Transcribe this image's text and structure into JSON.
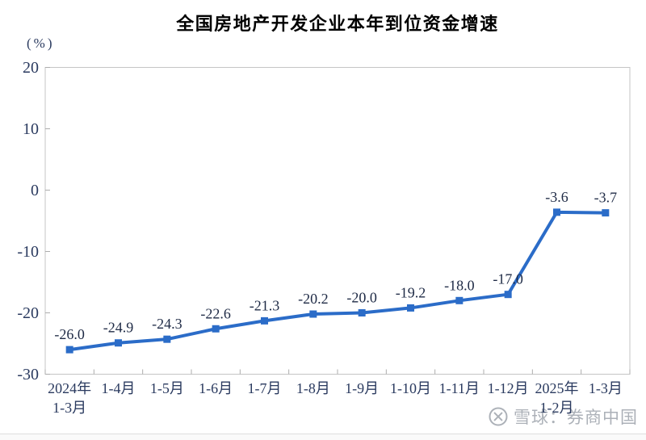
{
  "page": {
    "background": "#FFFFFF"
  },
  "watermark": {
    "logo_icon": "xueqiu-circle-logo",
    "text": "雪球：券商中国"
  },
  "colors": {
    "line": "#2B6CC8",
    "marker": "#2B6CC8",
    "axis_text": "#2A3A5F",
    "data_label": "#1E2A45",
    "title_text": "#000000",
    "plot_border": "#C5C5C5",
    "tick": "#ADADAD",
    "watermark": "#ACB1B8",
    "bottom_rule": "#DEDEDE"
  },
  "chart_data": {
    "type": "line",
    "title": "全国房地产开发企业本年到位资金增速",
    "unit_label": "(%)",
    "categories": [
      "2024年\n1-3月",
      "1-4月",
      "1-5月",
      "1-6月",
      "1-7月",
      "1-8月",
      "1-9月",
      "1-10月",
      "1-11月",
      "1-12月",
      "2025年\n1-2月",
      "1-3月"
    ],
    "values": [
      -26.0,
      -24.9,
      -24.3,
      -22.6,
      -21.3,
      -20.2,
      -20.0,
      -19.2,
      -18.0,
      -17.0,
      -3.6,
      -3.7
    ],
    "point_labels": [
      "-26.0",
      "-24.9",
      "-24.3",
      "-22.6",
      "-21.3",
      "-20.2",
      "-20.0",
      "-19.2",
      "-18.0",
      "-17.0",
      "-3.6",
      "-3.7"
    ],
    "xlabel": "",
    "ylabel": "(%)",
    "ylim": [
      -30,
      20
    ],
    "yticks": [
      20,
      10,
      0,
      -10,
      -20,
      -30
    ],
    "grid": false,
    "legend": "none",
    "marker": "square"
  }
}
